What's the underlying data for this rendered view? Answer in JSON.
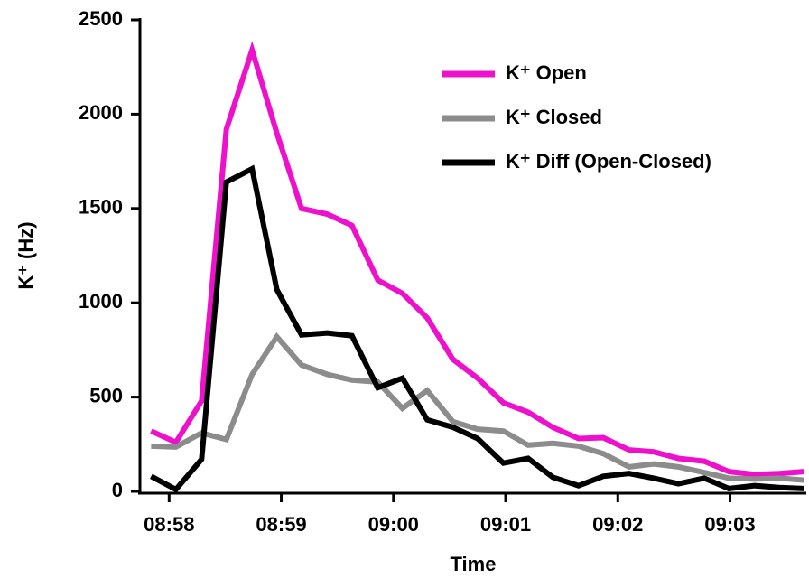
{
  "chart_data": {
    "type": "line",
    "x_label": "Time",
    "y_label": "K⁺ (Hz)",
    "x": [
      537.84,
      538.06,
      538.29,
      538.51,
      538.74,
      538.96,
      539.18,
      539.41,
      539.63,
      539.86,
      540.08,
      540.3,
      540.53,
      540.75,
      540.98,
      541.2,
      541.42,
      541.65,
      541.87,
      542.1,
      542.32,
      542.54,
      542.77,
      542.99,
      543.22,
      543.44,
      543.66
    ],
    "series": [
      {
        "name": "K⁺ Open",
        "color": "#ee11cc",
        "values": [
          320,
          260,
          480,
          1920,
          2340,
          1900,
          1500,
          1470,
          1410,
          1120,
          1050,
          920,
          700,
          600,
          470,
          420,
          340,
          280,
          285,
          220,
          210,
          175,
          160,
          105,
          90,
          95,
          105
        ]
      },
      {
        "name": "K⁺ Closed",
        "color": "#8c8c8c",
        "values": [
          240,
          235,
          310,
          275,
          620,
          820,
          670,
          620,
          590,
          580,
          440,
          535,
          370,
          330,
          320,
          245,
          255,
          240,
          200,
          130,
          145,
          130,
          100,
          70,
          65,
          70,
          60
        ]
      },
      {
        "name": "K⁺ Diff (Open-Closed)",
        "color": "#000000",
        "values": [
          80,
          10,
          170,
          1640,
          1710,
          1070,
          830,
          840,
          825,
          550,
          600,
          380,
          340,
          280,
          150,
          175,
          75,
          30,
          80,
          95,
          70,
          40,
          70,
          15,
          30,
          20,
          15
        ]
      }
    ],
    "xlim": [
      537.74,
      543.68
    ],
    "xticks": [
      {
        "value": 538,
        "label": "08:58"
      },
      {
        "value": 539,
        "label": "08:59"
      },
      {
        "value": 540,
        "label": "09:00"
      },
      {
        "value": 541,
        "label": "09:01"
      },
      {
        "value": 542,
        "label": "09:02"
      },
      {
        "value": 543,
        "label": "09:03"
      }
    ],
    "ylim": [
      0,
      2500
    ],
    "yticks": [
      0,
      500,
      1000,
      1500,
      2000,
      2500
    ],
    "legend": "upper right"
  }
}
